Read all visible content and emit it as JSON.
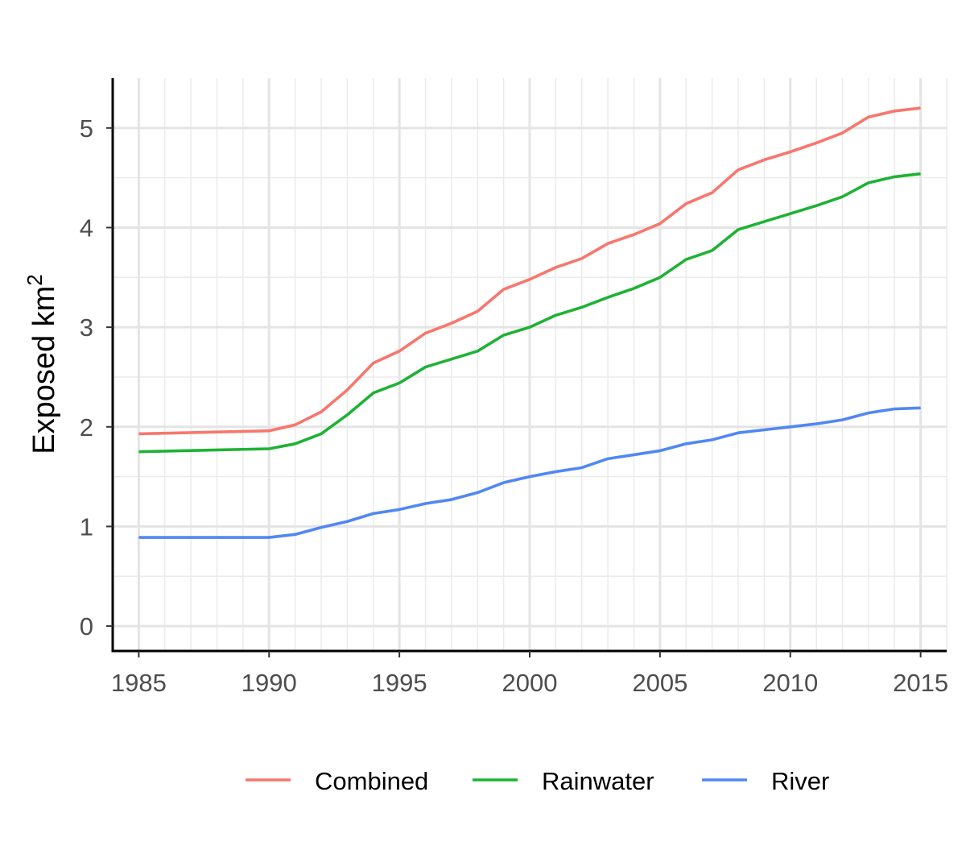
{
  "chart_data": {
    "type": "line",
    "title": "",
    "xlabel": "",
    "ylabel": "Exposed km",
    "ylabel_superscript": "2",
    "x": [
      1985,
      1990,
      1991,
      1992,
      1993,
      1994,
      1995,
      1996,
      1997,
      1998,
      1999,
      2000,
      2001,
      2002,
      2003,
      2004,
      2005,
      2006,
      2007,
      2008,
      2009,
      2010,
      2011,
      2012,
      2013,
      2014,
      2015
    ],
    "series": [
      {
        "name": "Combined",
        "color": "#f8766d",
        "values": [
          1.93,
          1.96,
          2.02,
          2.15,
          2.37,
          2.64,
          2.76,
          2.94,
          3.04,
          3.16,
          3.38,
          3.48,
          3.6,
          3.69,
          3.84,
          3.93,
          4.04,
          4.24,
          4.35,
          4.58,
          4.68,
          4.76,
          4.85,
          4.95,
          5.11,
          5.17,
          5.2
        ]
      },
      {
        "name": "Rainwater",
        "color": "#1eb234",
        "values": [
          1.75,
          1.78,
          1.83,
          1.93,
          2.12,
          2.34,
          2.44,
          2.6,
          2.68,
          2.76,
          2.92,
          3.0,
          3.12,
          3.2,
          3.3,
          3.39,
          3.5,
          3.68,
          3.77,
          3.98,
          4.06,
          4.14,
          4.22,
          4.31,
          4.45,
          4.51,
          4.54
        ]
      },
      {
        "name": "River",
        "color": "#5087f5",
        "values": [
          0.89,
          0.89,
          0.92,
          0.99,
          1.05,
          1.13,
          1.17,
          1.23,
          1.27,
          1.34,
          1.44,
          1.5,
          1.55,
          1.59,
          1.68,
          1.72,
          1.76,
          1.83,
          1.87,
          1.94,
          1.97,
          2.0,
          2.03,
          2.07,
          2.14,
          2.18,
          2.19
        ]
      }
    ],
    "xlim": [
      1984,
      2016
    ],
    "ylim": [
      -0.25,
      5.5
    ],
    "xticks": [
      "1985",
      "1990",
      "1995",
      "2000",
      "2005",
      "2010",
      "2015"
    ],
    "yticks": [
      "0",
      "1",
      "2",
      "3",
      "4",
      "5"
    ],
    "grid": true,
    "legend_position": "bottom"
  }
}
